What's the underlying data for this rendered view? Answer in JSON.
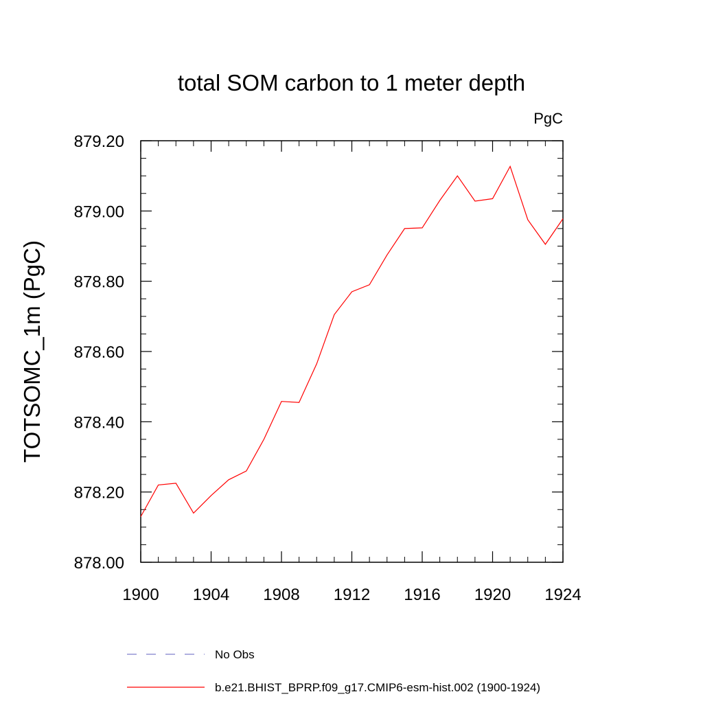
{
  "chart_data": {
    "type": "line",
    "title": "total SOM carbon to 1 meter depth",
    "units": "PgC",
    "ylabel": "TOTSOMC_1m  (PgC)",
    "xlabel": "",
    "xlim": [
      1900,
      1924
    ],
    "ylim": [
      878.0,
      879.2
    ],
    "x_ticks": [
      1900,
      1904,
      1908,
      1912,
      1916,
      1920,
      1924
    ],
    "y_ticks": [
      "878.00",
      "878.20",
      "878.40",
      "878.60",
      "878.80",
      "879.00",
      "879.20"
    ],
    "x_minor_step": 1,
    "y_minor_step": 0.05,
    "grid": false,
    "legend_placement": "bottom",
    "series": [
      {
        "name": "No Obs",
        "color": "#7f7fcc",
        "dash": true,
        "x": [],
        "y": []
      },
      {
        "name": "b.e21.BHIST_BPRP.f09_g17.CMIP6-esm-hist.002 (1900-1924)",
        "color": "#ff0000",
        "dash": false,
        "x": [
          1900,
          1901,
          1902,
          1903,
          1904,
          1905,
          1906,
          1907,
          1908,
          1909,
          1910,
          1911,
          1912,
          1913,
          1914,
          1915,
          1916,
          1917,
          1918,
          1919,
          1920,
          1921,
          1922,
          1923,
          1924
        ],
        "y": [
          878.13,
          878.22,
          878.225,
          878.14,
          878.19,
          878.235,
          878.26,
          878.35,
          878.458,
          878.455,
          878.565,
          878.705,
          878.77,
          878.79,
          878.875,
          878.95,
          878.952,
          879.03,
          879.1,
          879.028,
          879.035,
          879.127,
          878.975,
          878.905,
          878.978
        ]
      }
    ]
  }
}
